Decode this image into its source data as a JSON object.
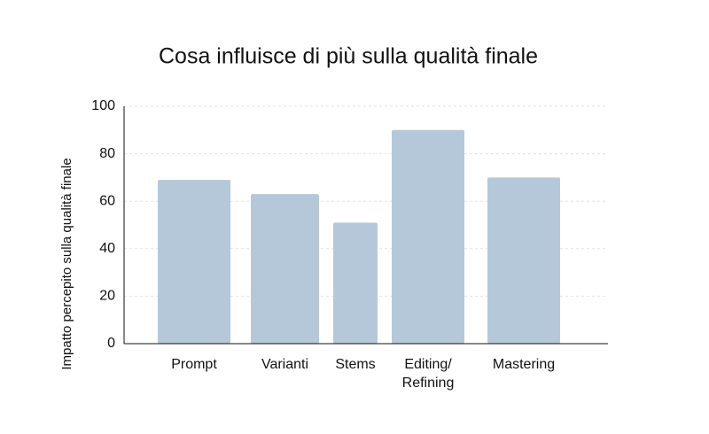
{
  "chart_data": {
    "type": "bar",
    "title": "Cosa influisce di più sulla qualità finale",
    "y_label": "Impatto percepito sulla qualità finale",
    "categories": [
      "Prompt",
      "Varianti",
      "Stems",
      "Editing/\nRefining",
      "Mastering"
    ],
    "values": [
      69,
      63,
      51,
      90,
      70
    ],
    "color": "#b4c8da",
    "ylim": [
      0,
      100
    ],
    "yticks": [
      0,
      20,
      40,
      60,
      80,
      100
    ],
    "grid": true
  }
}
